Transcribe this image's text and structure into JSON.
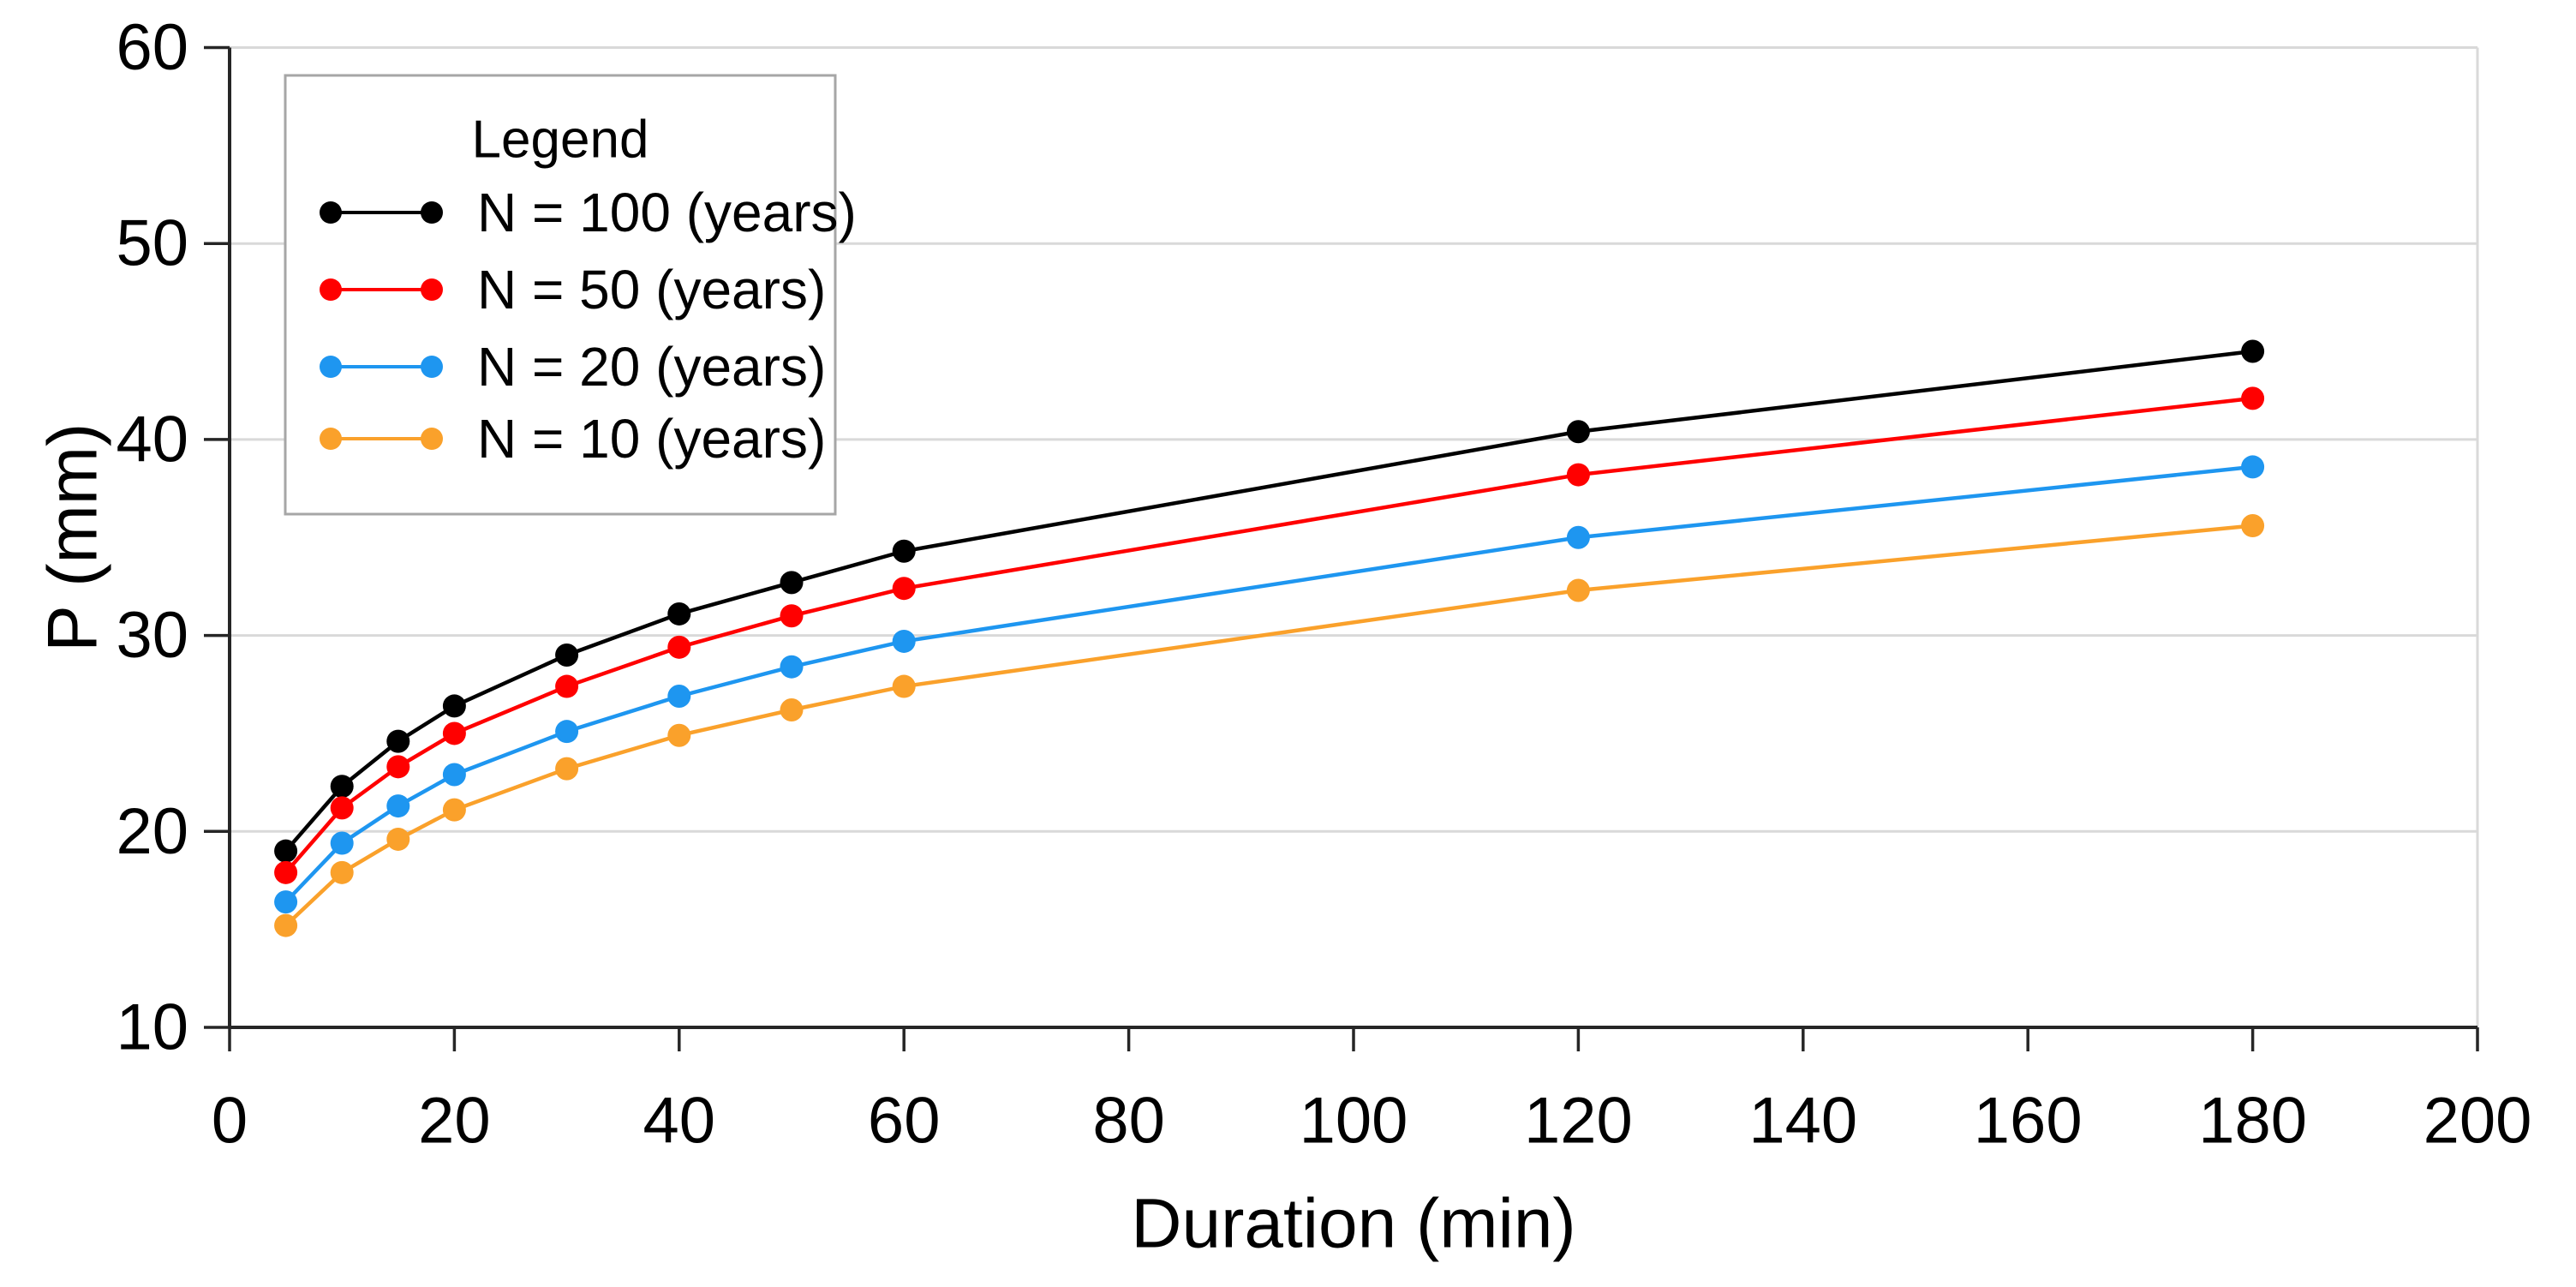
{
  "figure": {
    "description": "Depth-duration-frequency curves, precipitation depth vs duration for four return periods"
  },
  "chart_data": {
    "type": "line",
    "title": "",
    "xlabel": "Duration (min)",
    "ylabel": "P (mm)",
    "xlim": [
      0,
      200
    ],
    "ylim": [
      10,
      60
    ],
    "x_ticks": [
      0,
      20,
      40,
      60,
      80,
      100,
      120,
      140,
      160,
      180,
      200
    ],
    "y_ticks": [
      10,
      20,
      30,
      40,
      50,
      60
    ],
    "grid": "horizontal gridlines only, light gray; plot framed by gray line top and right, black axes left and bottom",
    "legend_position": "upper-left",
    "legend_title": "Legend",
    "x": [
      5,
      10,
      15,
      20,
      30,
      40,
      50,
      60,
      120,
      180
    ],
    "series": [
      {
        "name": "N = 100 (years)",
        "color": "#000000",
        "values": [
          19.0,
          22.3,
          24.6,
          26.4,
          29.0,
          31.1,
          32.7,
          34.3,
          40.4,
          44.5
        ]
      },
      {
        "name": "N = 50 (years)",
        "color": "#FF0000",
        "values": [
          17.9,
          21.2,
          23.3,
          25.0,
          27.4,
          29.4,
          31.0,
          32.4,
          38.2,
          42.1
        ]
      },
      {
        "name": "N = 20 (years)",
        "color": "#1E96F0",
        "values": [
          16.4,
          19.4,
          21.3,
          22.9,
          25.1,
          26.9,
          28.4,
          29.7,
          35.0,
          38.6
        ]
      },
      {
        "name": "N = 10 (years)",
        "color": "#FAA12B",
        "values": [
          15.2,
          17.9,
          19.6,
          21.1,
          23.2,
          24.9,
          26.2,
          27.4,
          32.3,
          35.6
        ]
      }
    ]
  },
  "colors": {
    "background": "#FFFFFF",
    "gridline": "#D9D9D9",
    "axis_line": "#262626",
    "text": "#000000",
    "legend_border": "#A6A6A6",
    "legend_fill": "#FFFFFF"
  }
}
